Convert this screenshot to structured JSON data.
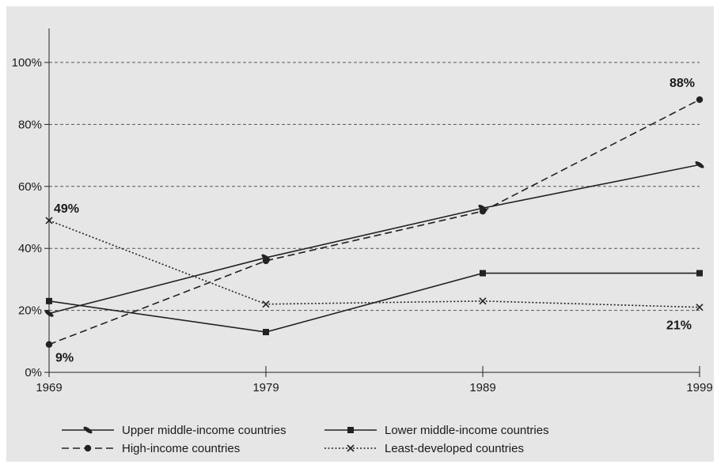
{
  "chart_data": {
    "type": "line",
    "categories": [
      "1969",
      "1979",
      "1989",
      "1999"
    ],
    "y_ticks": [
      "0%",
      "20%",
      "40%",
      "60%",
      "80%",
      "100%"
    ],
    "ylim": [
      0,
      110
    ],
    "grid": "horizontal dashed",
    "legend_position": "bottom",
    "series": [
      {
        "key": "upper",
        "name": "Upper middle-income countries",
        "values": [
          19,
          37,
          53,
          67
        ],
        "line": "solid",
        "marker": "leaf"
      },
      {
        "key": "lower",
        "name": "Lower middle-income countries",
        "values": [
          23,
          13,
          32,
          32
        ],
        "line": "solid",
        "marker": "square"
      },
      {
        "key": "high",
        "name": "High-income countries",
        "values": [
          9,
          36,
          52,
          88
        ],
        "line": "dashed",
        "marker": "circle"
      },
      {
        "key": "least",
        "name": "Least-developed countries",
        "values": [
          49,
          22,
          23,
          21
        ],
        "line": "dotted",
        "marker": "x"
      }
    ],
    "annotations": [
      {
        "text": "49%",
        "series": "least",
        "index": 0
      },
      {
        "text": "9%",
        "series": "high",
        "index": 0
      },
      {
        "text": "88%",
        "series": "high",
        "index": 3
      },
      {
        "text": "21%",
        "series": "least",
        "index": 3
      }
    ]
  }
}
